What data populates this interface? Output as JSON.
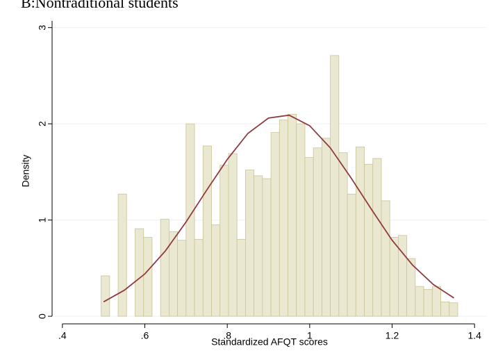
{
  "chart_data": {
    "type": "histogram",
    "title": "B:Nontraditional students",
    "xlabel": "Standardized AFQT scores",
    "ylabel": "Density",
    "bins": [
      0.494,
      0.5146,
      0.5352,
      0.5558,
      0.5764,
      0.597,
      0.6176,
      0.6382,
      0.6588,
      0.6794,
      0.7,
      0.7206,
      0.7412,
      0.7618,
      0.7824,
      0.803,
      0.8236,
      0.8442,
      0.8648,
      0.8854,
      0.906,
      0.9266,
      0.9472,
      0.9678,
      0.9884,
      1.009,
      1.0296,
      1.0502,
      1.0708,
      1.0914,
      1.112,
      1.1326,
      1.1532,
      1.1738,
      1.1944,
      1.215,
      1.2356,
      1.2562,
      1.2768,
      1.2974,
      1.318,
      1.3386,
      1.3592
    ],
    "values": [
      0.42,
      0,
      1.27,
      0,
      0.91,
      0.82,
      0,
      1.01,
      0.88,
      0.79,
      2.0,
      0.8,
      1.77,
      0.95,
      1.57,
      1.69,
      0.8,
      1.52,
      1.46,
      1.43,
      1.91,
      2.04,
      2.1,
      2.0,
      1.65,
      1.75,
      1.85,
      2.71,
      1.7,
      1.27,
      1.76,
      1.58,
      1.64,
      1.2,
      0.82,
      0.84,
      0.6,
      0.31,
      0.28,
      0.31,
      0.15,
      0.14
    ],
    "color": "#eae8d0",
    "edgecolor": "#c8c49a",
    "curve": {
      "x": [
        0.5,
        0.55,
        0.6,
        0.65,
        0.7,
        0.75,
        0.8,
        0.85,
        0.9,
        0.95,
        1.0,
        1.05,
        1.1,
        1.15,
        1.2,
        1.25,
        1.3,
        1.35
      ],
      "values": [
        0.15,
        0.27,
        0.44,
        0.68,
        0.98,
        1.31,
        1.63,
        1.9,
        2.06,
        2.09,
        1.98,
        1.75,
        1.44,
        1.11,
        0.79,
        0.53,
        0.33,
        0.19
      ],
      "color": "#8f3a3f"
    },
    "xlim": [
      0.375,
      1.43
    ],
    "ylim": [
      -0.05,
      3.07
    ],
    "xticks": [
      {
        "value": 0.4,
        "label": ".4"
      },
      {
        "value": 0.6,
        "label": ".6"
      },
      {
        "value": 0.8,
        "label": ".8"
      },
      1,
      1.2,
      1.4
    ],
    "yticks": [
      0,
      1,
      2,
      3
    ],
    "grid": true
  }
}
